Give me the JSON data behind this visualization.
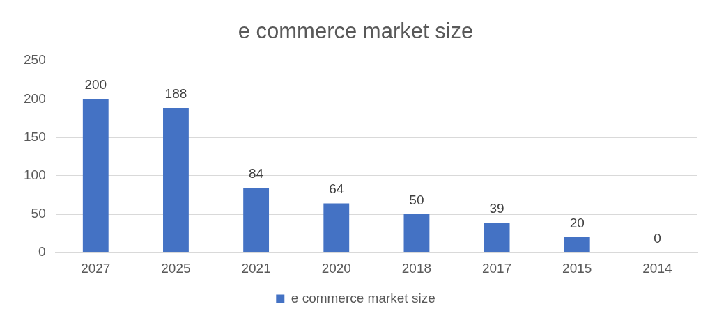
{
  "chart_data": {
    "type": "bar",
    "title": "e commerce market size",
    "categories": [
      "2027",
      "2025",
      "2021",
      "2020",
      "2018",
      "2017",
      "2015",
      "2014"
    ],
    "series": [
      {
        "name": "e commerce market size",
        "color": "#4472c4",
        "values": [
          200,
          188,
          84,
          64,
          50,
          39,
          20,
          0
        ]
      }
    ],
    "ylim": [
      0,
      250
    ],
    "yticks": [
      0,
      50,
      100,
      150,
      200,
      250
    ],
    "grid": "y",
    "legend": "bottom",
    "data_labels": true
  }
}
